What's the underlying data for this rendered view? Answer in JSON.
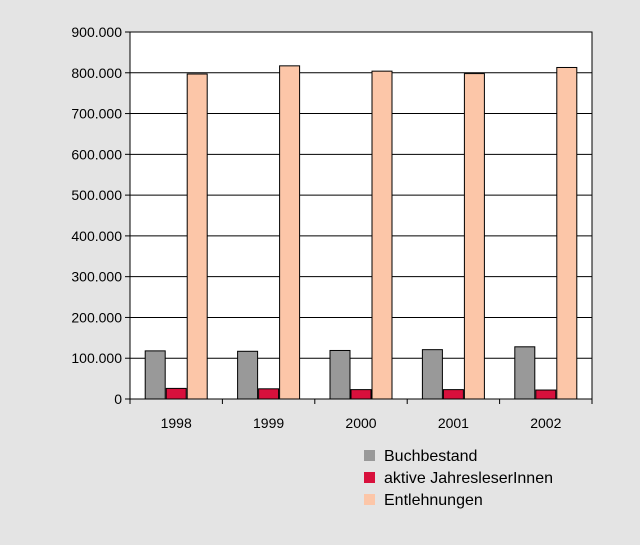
{
  "chart_data": {
    "type": "bar",
    "categories": [
      "1998",
      "1999",
      "2000",
      "2001",
      "2002"
    ],
    "series": [
      {
        "name": "Buchbestand",
        "color": "#999999",
        "values": [
          118000,
          117000,
          119000,
          121000,
          128000
        ]
      },
      {
        "name": "aktive JahresleserInnen",
        "color": "#d8103c",
        "values": [
          26000,
          25000,
          23000,
          23000,
          22000
        ]
      },
      {
        "name": "Entlehnungen",
        "color": "#fcc6a8",
        "values": [
          797000,
          817000,
          804000,
          798000,
          813000
        ]
      }
    ],
    "ylim": [
      0,
      900000
    ],
    "yticks": [
      0,
      100000,
      200000,
      300000,
      400000,
      500000,
      600000,
      700000,
      800000,
      900000
    ],
    "ytick_labels": [
      "0",
      "100.000",
      "200.000",
      "300.000",
      "400.000",
      "500.000",
      "600.000",
      "700.000",
      "800.000",
      "900.000"
    ],
    "grid": true,
    "legend_position": "bottom-right",
    "background_color": "#e4e4e4",
    "plot_background_color": "#ffffff"
  }
}
